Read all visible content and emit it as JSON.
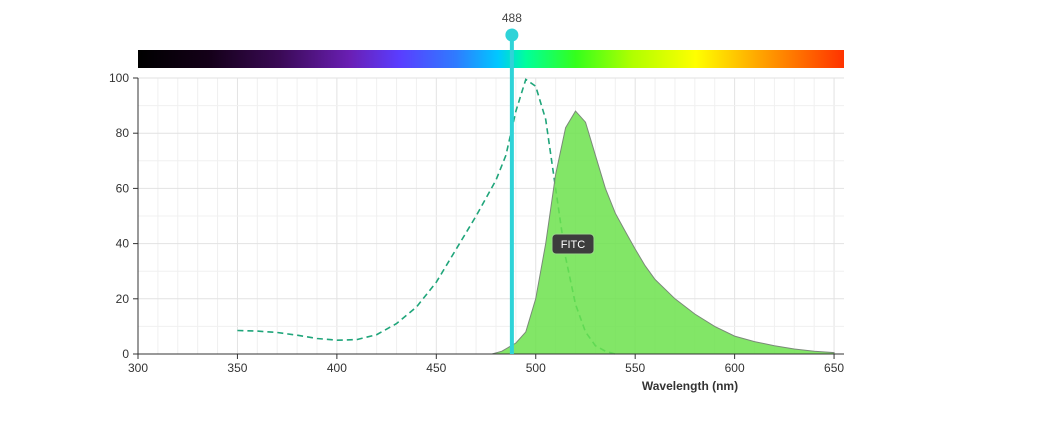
{
  "chart_data": {
    "type": "area",
    "xlabel": "Wavelength (nm)",
    "ylabel": "",
    "xlim": [
      300,
      655
    ],
    "ylim": [
      0,
      100
    ],
    "x_ticks": [
      300,
      350,
      400,
      450,
      500,
      550,
      600,
      650
    ],
    "y_ticks": [
      0,
      20,
      40,
      60,
      80,
      100
    ],
    "grid": true,
    "laser": {
      "wavelength": 488,
      "label": "488",
      "color": "#2fd3d8"
    },
    "dye_label": "FITC",
    "series": [
      {
        "kind": "excitation",
        "style": "dashed",
        "color": "#1fa57a",
        "points": [
          [
            350,
            8.5
          ],
          [
            360,
            8.3
          ],
          [
            370,
            7.8
          ],
          [
            380,
            6.8
          ],
          [
            390,
            5.6
          ],
          [
            400,
            5.0
          ],
          [
            410,
            5.2
          ],
          [
            420,
            7.0
          ],
          [
            430,
            11.0
          ],
          [
            440,
            17.0
          ],
          [
            450,
            26.0
          ],
          [
            460,
            38.0
          ],
          [
            470,
            50.0
          ],
          [
            480,
            63.0
          ],
          [
            485,
            72.0
          ],
          [
            490,
            88.0
          ],
          [
            495,
            99.5
          ],
          [
            500,
            97.0
          ],
          [
            505,
            85.0
          ],
          [
            510,
            60.0
          ],
          [
            515,
            35.0
          ],
          [
            520,
            18.0
          ],
          [
            525,
            8.0
          ],
          [
            530,
            3.0
          ],
          [
            535,
            1.0
          ],
          [
            540,
            0
          ]
        ]
      },
      {
        "kind": "emission",
        "style": "filled",
        "color": "#6ce24c",
        "points": [
          [
            478,
            0
          ],
          [
            483,
            1.0
          ],
          [
            490,
            4.0
          ],
          [
            495,
            8.0
          ],
          [
            500,
            20.0
          ],
          [
            505,
            40.0
          ],
          [
            510,
            65.0
          ],
          [
            515,
            82.0
          ],
          [
            520,
            88.0
          ],
          [
            525,
            84.0
          ],
          [
            530,
            72.0
          ],
          [
            535,
            60.0
          ],
          [
            540,
            51.0
          ],
          [
            545,
            44.5
          ],
          [
            550,
            38.0
          ],
          [
            555,
            32.0
          ],
          [
            560,
            27.0
          ],
          [
            570,
            20.0
          ],
          [
            580,
            14.5
          ],
          [
            590,
            10.0
          ],
          [
            600,
            6.5
          ],
          [
            610,
            4.5
          ],
          [
            620,
            3.0
          ],
          [
            630,
            1.8
          ],
          [
            640,
            1.0
          ],
          [
            650,
            0.5
          ]
        ]
      }
    ]
  }
}
